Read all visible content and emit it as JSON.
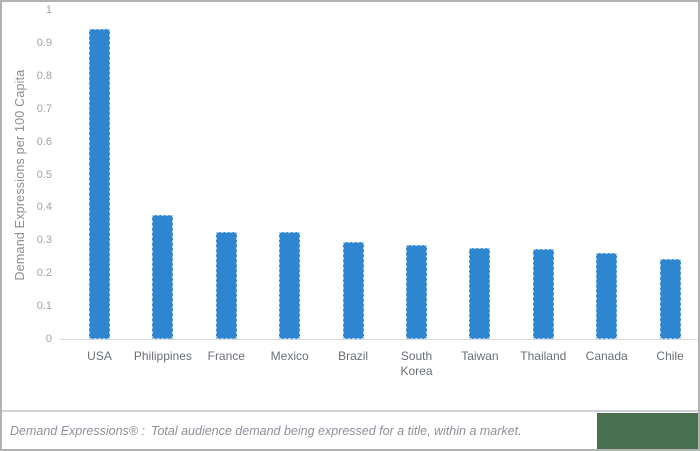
{
  "chart_data": {
    "type": "bar",
    "title": "",
    "xlabel": "",
    "ylabel": "Demand Expressions per 100 Capita",
    "categories": [
      "USA",
      "Philippines",
      "France",
      "Mexico",
      "Brazil",
      "South Korea",
      "Taiwan",
      "Thailand",
      "Canada",
      "Chile"
    ],
    "values": [
      0.943,
      0.377,
      0.325,
      0.324,
      0.294,
      0.287,
      0.278,
      0.274,
      0.262,
      0.243
    ],
    "ylim": [
      0,
      1
    ],
    "yticks": [
      0,
      0.1,
      0.2,
      0.3,
      0.4,
      0.5,
      0.6,
      0.7,
      0.8,
      0.9,
      1
    ],
    "ytick_labels": [
      "0",
      "0.1",
      "0.2",
      "0.3",
      "0.4",
      "0.5",
      "0.6",
      "0.7",
      "0.8",
      "0.9",
      "1"
    ],
    "grid": false,
    "legend": "none",
    "bar_color": "#2e86d0"
  },
  "footer": {
    "term": "Demand Expressions® :",
    "definition": "Total audience demand being expressed for a title, within a market."
  },
  "colors": {
    "bar_blue": "#2e86d0",
    "brand_green": "#48704e",
    "axis_text_gray": "#a3a3a3",
    "category_text_gray": "#6a6f75",
    "footer_text_gray": "#8b9098",
    "frame_border_gray": "#b2b2b2",
    "baseline_gray": "#d9d9d9"
  }
}
